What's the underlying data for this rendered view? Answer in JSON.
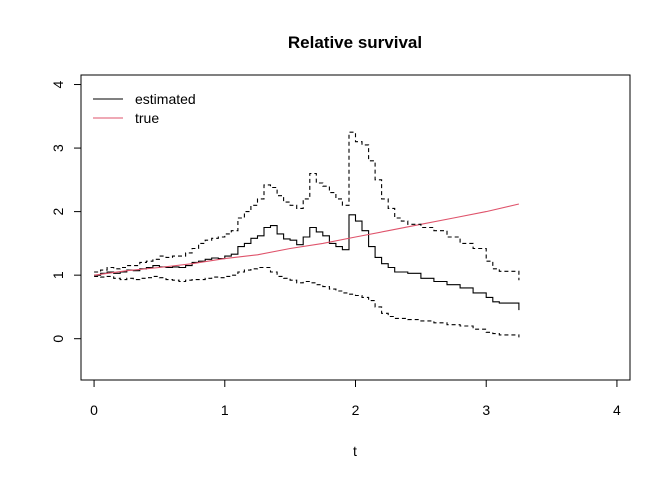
{
  "chart_data": {
    "type": "line",
    "title": "Relative survival",
    "xlabel": "t",
    "ylabel": "",
    "xlim": [
      -0.1,
      4.1
    ],
    "ylim": [
      -0.65,
      4.15
    ],
    "xticks": [
      0,
      1,
      2,
      3,
      4
    ],
    "yticks": [
      0,
      1,
      2,
      3,
      4
    ],
    "grid": false,
    "legend_position": "top-left",
    "series": [
      {
        "name": "estimated",
        "color": "#000000",
        "style": "solid",
        "step": true,
        "points": [
          [
            0,
            1.0
          ],
          [
            0.05,
            1.03
          ],
          [
            0.1,
            1.05
          ],
          [
            0.15,
            1.03
          ],
          [
            0.2,
            1.05
          ],
          [
            0.25,
            1.08
          ],
          [
            0.3,
            1.07
          ],
          [
            0.35,
            1.1
          ],
          [
            0.4,
            1.12
          ],
          [
            0.45,
            1.15
          ],
          [
            0.5,
            1.13
          ],
          [
            0.55,
            1.12
          ],
          [
            0.6,
            1.13
          ],
          [
            0.65,
            1.12
          ],
          [
            0.7,
            1.15
          ],
          [
            0.75,
            1.2
          ],
          [
            0.8,
            1.22
          ],
          [
            0.85,
            1.25
          ],
          [
            0.9,
            1.27
          ],
          [
            0.95,
            1.26
          ],
          [
            1.0,
            1.3
          ],
          [
            1.05,
            1.33
          ],
          [
            1.1,
            1.45
          ],
          [
            1.15,
            1.5
          ],
          [
            1.2,
            1.58
          ],
          [
            1.25,
            1.62
          ],
          [
            1.3,
            1.75
          ],
          [
            1.35,
            1.78
          ],
          [
            1.4,
            1.65
          ],
          [
            1.45,
            1.57
          ],
          [
            1.5,
            1.55
          ],
          [
            1.55,
            1.48
          ],
          [
            1.6,
            1.6
          ],
          [
            1.65,
            1.75
          ],
          [
            1.7,
            1.68
          ],
          [
            1.75,
            1.62
          ],
          [
            1.8,
            1.5
          ],
          [
            1.85,
            1.45
          ],
          [
            1.9,
            1.4
          ],
          [
            1.95,
            1.95
          ],
          [
            2.0,
            1.85
          ],
          [
            2.05,
            1.7
          ],
          [
            2.1,
            1.45
          ],
          [
            2.15,
            1.28
          ],
          [
            2.2,
            1.18
          ],
          [
            2.25,
            1.12
          ],
          [
            2.3,
            1.05
          ],
          [
            2.4,
            1.03
          ],
          [
            2.5,
            0.95
          ],
          [
            2.6,
            0.9
          ],
          [
            2.7,
            0.85
          ],
          [
            2.8,
            0.8
          ],
          [
            2.9,
            0.72
          ],
          [
            3.0,
            0.65
          ],
          [
            3.05,
            0.58
          ],
          [
            3.1,
            0.56
          ],
          [
            3.25,
            0.56
          ],
          [
            3.25,
            0.45
          ]
        ]
      },
      {
        "name": "true",
        "color": "#DF536B",
        "style": "solid",
        "step": false,
        "points": [
          [
            0,
            1.0
          ],
          [
            0.25,
            1.07
          ],
          [
            0.5,
            1.12
          ],
          [
            0.75,
            1.18
          ],
          [
            1.0,
            1.26
          ],
          [
            1.25,
            1.32
          ],
          [
            1.5,
            1.42
          ],
          [
            1.75,
            1.5
          ],
          [
            2.0,
            1.6
          ],
          [
            2.25,
            1.7
          ],
          [
            2.5,
            1.8
          ],
          [
            2.75,
            1.9
          ],
          [
            3.0,
            2.0
          ],
          [
            3.25,
            2.12
          ]
        ]
      },
      {
        "name": "",
        "color": "#000000",
        "style": "dashed",
        "step": true,
        "points": [
          [
            0,
            1.05
          ],
          [
            0.05,
            1.08
          ],
          [
            0.1,
            1.12
          ],
          [
            0.15,
            1.1
          ],
          [
            0.2,
            1.12
          ],
          [
            0.25,
            1.15
          ],
          [
            0.3,
            1.15
          ],
          [
            0.35,
            1.2
          ],
          [
            0.4,
            1.22
          ],
          [
            0.45,
            1.25
          ],
          [
            0.5,
            1.3
          ],
          [
            0.55,
            1.28
          ],
          [
            0.6,
            1.3
          ],
          [
            0.65,
            1.3
          ],
          [
            0.7,
            1.35
          ],
          [
            0.75,
            1.42
          ],
          [
            0.8,
            1.5
          ],
          [
            0.85,
            1.55
          ],
          [
            0.9,
            1.58
          ],
          [
            0.95,
            1.6
          ],
          [
            1.0,
            1.65
          ],
          [
            1.05,
            1.7
          ],
          [
            1.1,
            1.9
          ],
          [
            1.15,
            2.0
          ],
          [
            1.2,
            2.1
          ],
          [
            1.25,
            2.2
          ],
          [
            1.3,
            2.42
          ],
          [
            1.35,
            2.38
          ],
          [
            1.4,
            2.25
          ],
          [
            1.45,
            2.15
          ],
          [
            1.5,
            2.1
          ],
          [
            1.55,
            2.05
          ],
          [
            1.6,
            2.2
          ],
          [
            1.65,
            2.6
          ],
          [
            1.7,
            2.45
          ],
          [
            1.75,
            2.4
          ],
          [
            1.8,
            2.3
          ],
          [
            1.85,
            2.2
          ],
          [
            1.9,
            2.1
          ],
          [
            1.95,
            3.25
          ],
          [
            2.0,
            3.1
          ],
          [
            2.05,
            3.05
          ],
          [
            2.1,
            2.8
          ],
          [
            2.15,
            2.5
          ],
          [
            2.2,
            2.2
          ],
          [
            2.25,
            2.05
          ],
          [
            2.3,
            1.9
          ],
          [
            2.35,
            1.85
          ],
          [
            2.4,
            1.8
          ],
          [
            2.5,
            1.75
          ],
          [
            2.6,
            1.7
          ],
          [
            2.7,
            1.6
          ],
          [
            2.8,
            1.5
          ],
          [
            2.9,
            1.42
          ],
          [
            3.0,
            1.22
          ],
          [
            3.05,
            1.1
          ],
          [
            3.1,
            1.06
          ],
          [
            3.25,
            1.06
          ],
          [
            3.25,
            0.92
          ]
        ]
      },
      {
        "name": "",
        "color": "#000000",
        "style": "dashed",
        "step": true,
        "points": [
          [
            0,
            0.98
          ],
          [
            0.05,
            0.97
          ],
          [
            0.1,
            0.98
          ],
          [
            0.15,
            0.95
          ],
          [
            0.2,
            0.93
          ],
          [
            0.25,
            0.95
          ],
          [
            0.3,
            0.93
          ],
          [
            0.35,
            0.95
          ],
          [
            0.4,
            0.96
          ],
          [
            0.45,
            0.98
          ],
          [
            0.5,
            0.96
          ],
          [
            0.55,
            0.93
          ],
          [
            0.6,
            0.92
          ],
          [
            0.65,
            0.9
          ],
          [
            0.7,
            0.92
          ],
          [
            0.75,
            0.93
          ],
          [
            0.8,
            0.93
          ],
          [
            0.85,
            0.95
          ],
          [
            0.9,
            0.97
          ],
          [
            0.95,
            0.96
          ],
          [
            1.0,
            0.98
          ],
          [
            1.05,
            1.0
          ],
          [
            1.1,
            1.05
          ],
          [
            1.15,
            1.08
          ],
          [
            1.2,
            1.1
          ],
          [
            1.25,
            1.12
          ],
          [
            1.3,
            1.12
          ],
          [
            1.35,
            1.05
          ],
          [
            1.4,
            0.98
          ],
          [
            1.45,
            0.95
          ],
          [
            1.5,
            0.92
          ],
          [
            1.55,
            0.88
          ],
          [
            1.6,
            0.9
          ],
          [
            1.65,
            0.88
          ],
          [
            1.7,
            0.85
          ],
          [
            1.75,
            0.82
          ],
          [
            1.8,
            0.78
          ],
          [
            1.85,
            0.75
          ],
          [
            1.9,
            0.72
          ],
          [
            1.95,
            0.7
          ],
          [
            2.0,
            0.68
          ],
          [
            2.05,
            0.65
          ],
          [
            2.1,
            0.6
          ],
          [
            2.15,
            0.5
          ],
          [
            2.2,
            0.4
          ],
          [
            2.25,
            0.35
          ],
          [
            2.3,
            0.32
          ],
          [
            2.4,
            0.3
          ],
          [
            2.5,
            0.28
          ],
          [
            2.6,
            0.25
          ],
          [
            2.7,
            0.22
          ],
          [
            2.8,
            0.2
          ],
          [
            2.9,
            0.15
          ],
          [
            3.0,
            0.1
          ],
          [
            3.05,
            0.08
          ],
          [
            3.1,
            0.06
          ],
          [
            3.25,
            0.06
          ],
          [
            3.25,
            0.02
          ]
        ]
      }
    ]
  }
}
